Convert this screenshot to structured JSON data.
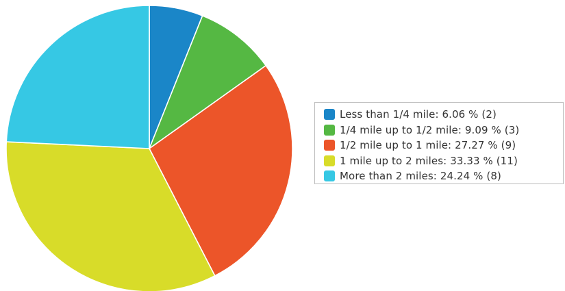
{
  "chart_data": {
    "type": "pie",
    "title": "",
    "legend_position": "right",
    "slices": [
      {
        "label": "Less than 1/4 mile",
        "percent": "6.06 %",
        "count": "(2)",
        "value": 2,
        "color": "#1a86c8"
      },
      {
        "label": "1/4 mile up to 1/2 mile",
        "percent": "9.09 %",
        "count": "(3)",
        "value": 3,
        "color": "#55b843"
      },
      {
        "label": "1/2 mile up to 1 mile",
        "percent": "27.27 %",
        "count": "(9)",
        "value": 9,
        "color": "#ec5529"
      },
      {
        "label": "1 mile up to 2 miles",
        "percent": "33.33 %",
        "count": "(11)",
        "value": 11,
        "color": "#d8dc29"
      },
      {
        "label": "More than 2 miles",
        "percent": "24.24 %",
        "count": "(8)",
        "value": 8,
        "color": "#36c8e4"
      }
    ]
  }
}
